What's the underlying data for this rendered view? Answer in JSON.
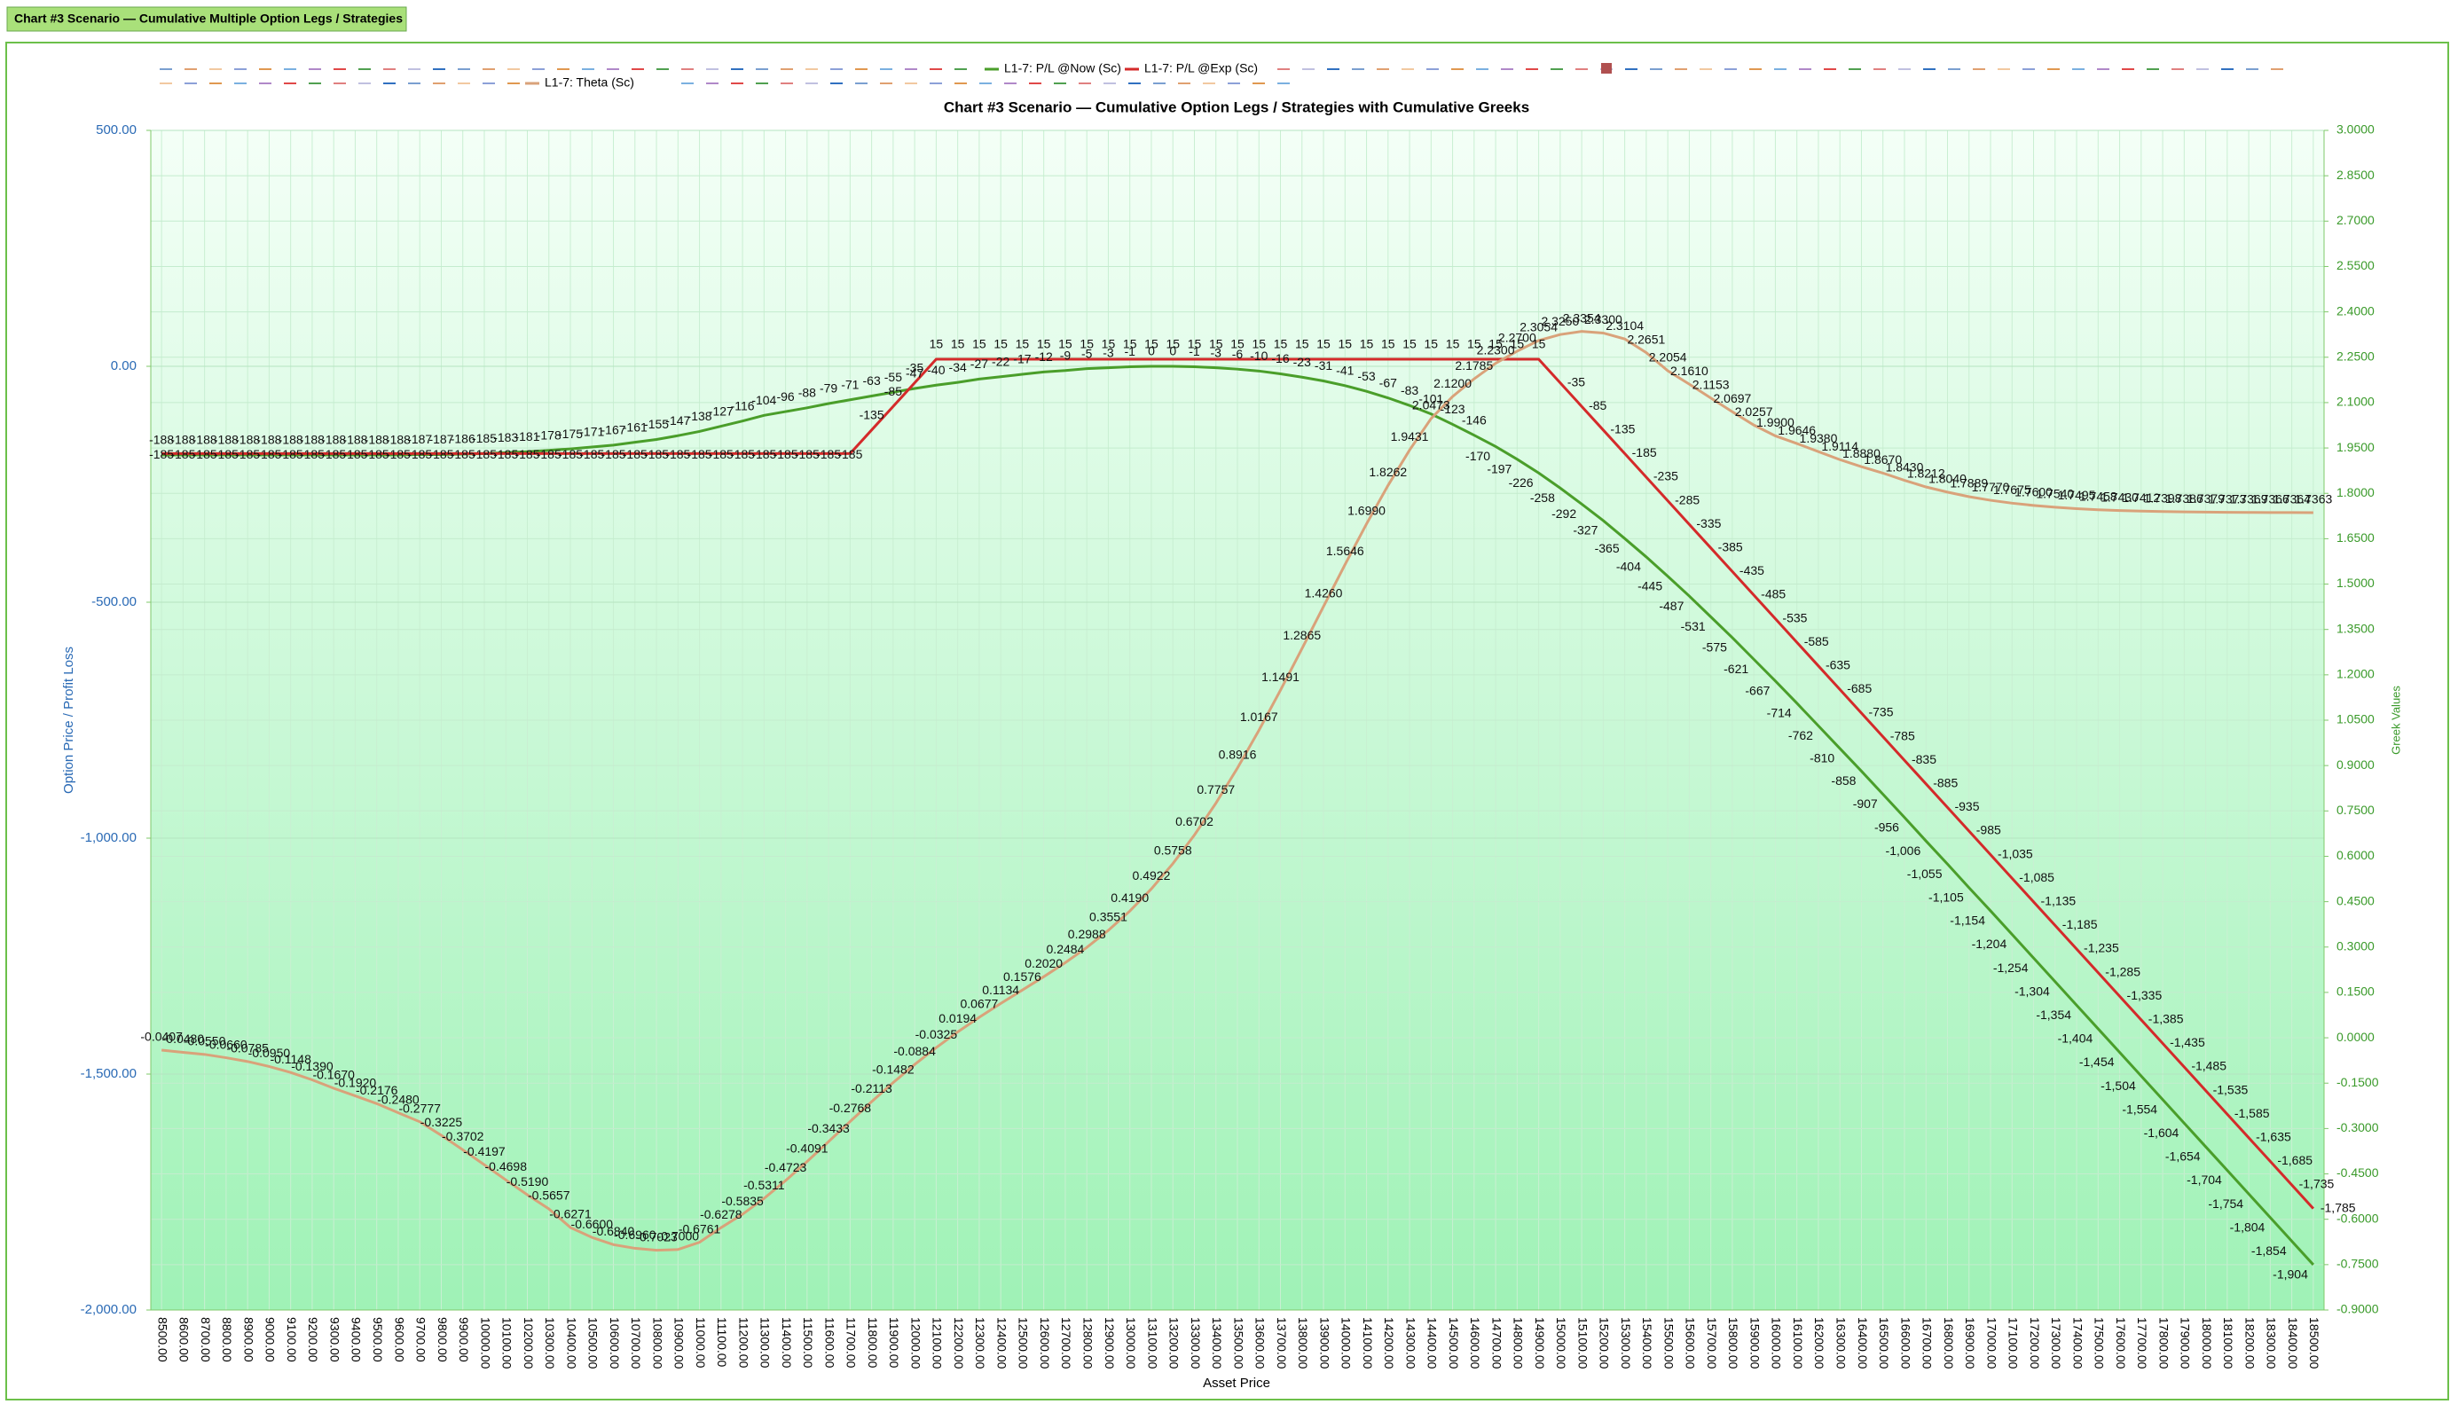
{
  "header": {
    "tab": "Chart #3 Scenario — Cumulative Multiple Option Legs / Strategies"
  },
  "chart_data": {
    "type": "line",
    "title": "Chart #3 Scenario — Cumulative Option Legs / Strategies with Cumulative Greeks",
    "x_label": "Asset Price",
    "y_label": "Option Price / Profit Loss",
    "y2_label": "Greek Values",
    "categories": [
      "8500.00",
      "8600.00",
      "8700.00",
      "8800.00",
      "8900.00",
      "9000.00",
      "9100.00",
      "9200.00",
      "9300.00",
      "9400.00",
      "9500.00",
      "9600.00",
      "9700.00",
      "9800.00",
      "9900.00",
      "10000.00",
      "10100.00",
      "10200.00",
      "10300.00",
      "10400.00",
      "10500.00",
      "10600.00",
      "10700.00",
      "10800.00",
      "10900.00",
      "11000.00",
      "11100.00",
      "11200.00",
      "11300.00",
      "11400.00",
      "11500.00",
      "11600.00",
      "11700.00",
      "11800.00",
      "11900.00",
      "12000.00",
      "12100.00",
      "12200.00",
      "12300.00",
      "12400.00",
      "12500.00",
      "12600.00",
      "12700.00",
      "12800.00",
      "12900.00",
      "13000.00",
      "13100.00",
      "13200.00",
      "13300.00",
      "13400.00",
      "13500.00",
      "13600.00",
      "13700.00",
      "13800.00",
      "13900.00",
      "14000.00",
      "14100.00",
      "14200.00",
      "14300.00",
      "14400.00",
      "14500.00",
      "14600.00",
      "14700.00",
      "14800.00",
      "14900.00",
      "15000.00",
      "15100.00",
      "15200.00",
      "15300.00",
      "15400.00",
      "15500.00",
      "15600.00",
      "15700.00",
      "15800.00",
      "15900.00",
      "16000.00",
      "16100.00",
      "16200.00",
      "16300.00",
      "16400.00",
      "16500.00",
      "16600.00",
      "16700.00",
      "16800.00",
      "16900.00",
      "17000.00",
      "17100.00",
      "17200.00",
      "17300.00",
      "17400.00",
      "17500.00",
      "17600.00",
      "17700.00",
      "17800.00",
      "17900.00",
      "18000.00",
      "18100.00",
      "18200.00",
      "18300.00",
      "18400.00",
      "18500.00"
    ],
    "ylim": [
      -2000,
      500
    ],
    "yticks": [
      {
        "value": 500,
        "label": "500.00"
      },
      {
        "value": 0,
        "label": "0.00"
      },
      {
        "value": -500,
        "label": "-500.00"
      },
      {
        "value": -1000,
        "label": "-1,000.00"
      },
      {
        "value": -1500,
        "label": "-1,500.00"
      },
      {
        "value": -2000,
        "label": "-2,000.00"
      }
    ],
    "y2lim": [
      -0.9,
      3.0
    ],
    "y2ticks": [
      {
        "value": 3.0,
        "label": "3.0000"
      },
      {
        "value": 2.85,
        "label": "2.8500"
      },
      {
        "value": 2.7,
        "label": "2.7000"
      },
      {
        "value": 2.55,
        "label": "2.5500"
      },
      {
        "value": 2.4,
        "label": "2.4000"
      },
      {
        "value": 2.25,
        "label": "2.2500"
      },
      {
        "value": 2.1,
        "label": "2.1000"
      },
      {
        "value": 1.95,
        "label": "1.9500"
      },
      {
        "value": 1.8,
        "label": "1.8000"
      },
      {
        "value": 1.65,
        "label": "1.6500"
      },
      {
        "value": 1.5,
        "label": "1.5000"
      },
      {
        "value": 1.35,
        "label": "1.3500"
      },
      {
        "value": 1.2,
        "label": "1.2000"
      },
      {
        "value": 1.05,
        "label": "1.0500"
      },
      {
        "value": 0.9,
        "label": "0.9000"
      },
      {
        "value": 0.75,
        "label": "0.7500"
      },
      {
        "value": 0.6,
        "label": "0.6000"
      },
      {
        "value": 0.45,
        "label": "0.4500"
      },
      {
        "value": 0.3,
        "label": "0.3000"
      },
      {
        "value": 0.15,
        "label": "0.1500"
      },
      {
        "value": 0,
        "label": "0.0000"
      },
      {
        "value": -0.15,
        "label": "-0.1500"
      },
      {
        "value": -0.3,
        "label": "-0.3000"
      },
      {
        "value": -0.45,
        "label": "-0.4500"
      },
      {
        "value": -0.6,
        "label": "-0.6000"
      },
      {
        "value": -0.75,
        "label": "-0.7500"
      },
      {
        "value": -0.9,
        "label": "-0.9000"
      }
    ],
    "grid": true,
    "series": [
      {
        "name": "L1-7: P/L @Now (Sc)",
        "color": "#4a9e2a",
        "axis": "y",
        "values": [
          -188,
          -188,
          -188,
          -188,
          -188,
          -188,
          -188,
          -188,
          -188,
          -188,
          -188,
          -188,
          -187,
          -187,
          -186,
          -185,
          -183,
          -181,
          -178,
          -175,
          -171,
          -167,
          -161,
          -155,
          -147,
          -138,
          -127,
          -116,
          -104,
          -96,
          -88,
          -79,
          -71,
          -63,
          -55,
          -47,
          -40,
          -34,
          -27,
          -22,
          -17,
          -12,
          -9,
          -5,
          -3,
          -1,
          0,
          0,
          -1,
          -3,
          -6,
          -10,
          -16,
          -23,
          -31,
          -41,
          -53,
          -67,
          -83,
          -101,
          -123,
          -146,
          -170,
          -197,
          -226,
          -258,
          -292,
          -327,
          -365,
          -404,
          -445,
          -487,
          -531,
          -575,
          -621,
          -667,
          -714,
          -762,
          -810,
          -858,
          -907,
          -956,
          -1006,
          -1055,
          -1105,
          -1154,
          -1204,
          -1254,
          -1304,
          -1354,
          -1404,
          -1454,
          -1504,
          -1554,
          -1604,
          -1654,
          -1704,
          -1754,
          -1804,
          -1854,
          -1904
        ],
        "value_labels": [
          "-188",
          "-188",
          "-188",
          "-188",
          "-188",
          "-188",
          "-188",
          "-188",
          "-188",
          "-188",
          "-188",
          "-188",
          "-187",
          "-187",
          "-186",
          "-185",
          "-183",
          "-181",
          "-178",
          "-175",
          "-171",
          "-167",
          "-161",
          "-155",
          "-147",
          "-138",
          "-127",
          "-116",
          "-104",
          "-96",
          "-88",
          "-79",
          "-71",
          "-63",
          "-55",
          "-47",
          "-40",
          "-34",
          "-27",
          "-22",
          "-17",
          "-12",
          "-9",
          "-5",
          "-3",
          "-1",
          "0",
          "0",
          "-1",
          "-3",
          "-6",
          "-10",
          "-16",
          "-23",
          "-31",
          "-41",
          "-53",
          "-67",
          "-83",
          "-101",
          "-123",
          "-146",
          "-170",
          "-197",
          "-226",
          "-258",
          "-292",
          "-327",
          "-365",
          "-404",
          "-445",
          "-487",
          "-531",
          "-575",
          "-621",
          "-667",
          "-714",
          "-762",
          "-810",
          "-858",
          "-907",
          "-956",
          "-1,006",
          "-1,055",
          "-1,105",
          "-1,154",
          "-1,204",
          "-1,254",
          "-1,304",
          "-1,354",
          "-1,404",
          "-1,454",
          "-1,504",
          "-1,554",
          "-1,604",
          "-1,654",
          "-1,704",
          "-1,754",
          "-1,804",
          "-1,854",
          "-1,904"
        ]
      },
      {
        "name": "L1-7: P/L @Exp (Sc)",
        "color": "#d42a2a",
        "axis": "y",
        "values": [
          -185,
          -185,
          -185,
          -185,
          -185,
          -185,
          -185,
          -185,
          -185,
          -185,
          -185,
          -185,
          -185,
          -185,
          -185,
          -185,
          -185,
          -185,
          -185,
          -185,
          -185,
          -185,
          -185,
          -185,
          -185,
          -185,
          -185,
          -185,
          -185,
          -185,
          -185,
          -185,
          -185,
          -135,
          -85,
          -35,
          15,
          15,
          15,
          15,
          15,
          15,
          15,
          15,
          15,
          15,
          15,
          15,
          15,
          15,
          15,
          15,
          15,
          15,
          15,
          15,
          15,
          15,
          15,
          15,
          15,
          15,
          15,
          15,
          15,
          -35,
          -85,
          -135,
          -185,
          -235,
          -285,
          -335,
          -385,
          -435,
          -485,
          -535,
          -585,
          -635,
          -685,
          -735,
          -785,
          -835,
          -885,
          -935,
          -985,
          -1035,
          -1085,
          -1135,
          -1185,
          -1235,
          -1285,
          -1335,
          -1385,
          -1435,
          -1485,
          -1535,
          -1585,
          -1635,
          -1685,
          -1735,
          -1785
        ],
        "value_labels": [
          "-185",
          "-185",
          "-185",
          "-185",
          "-185",
          "-185",
          "-185",
          "-185",
          "-185",
          "-185",
          "-185",
          "-185",
          "-185",
          "-185",
          "-185",
          "-185",
          "-185",
          "-185",
          "-185",
          "-185",
          "-185",
          "-185",
          "-185",
          "-185",
          "-185",
          "-185",
          "-185",
          "-185",
          "-185",
          "-185",
          "-185",
          "-185",
          "-185",
          "-135",
          "-85",
          "-35",
          "15",
          "15",
          "15",
          "15",
          "15",
          "15",
          "15",
          "15",
          "15",
          "15",
          "15",
          "15",
          "15",
          "15",
          "15",
          "15",
          "15",
          "15",
          "15",
          "15",
          "15",
          "15",
          "15",
          "15",
          "15",
          "15",
          "15",
          "15",
          "15",
          "-35",
          "-85",
          "-135",
          "-185",
          "-235",
          "-285",
          "-335",
          "-385",
          "-435",
          "-485",
          "-535",
          "-585",
          "-635",
          "-685",
          "-735",
          "-785",
          "-835",
          "-885",
          "-935",
          "-985",
          "-1,035",
          "-1,085",
          "-1,135",
          "-1,185",
          "-1,235",
          "-1,285",
          "-1,335",
          "-1,385",
          "-1,435",
          "-1,485",
          "-1,535",
          "-1,585",
          "-1,635",
          "-1,685",
          "-1,735",
          "-1,785"
        ]
      },
      {
        "name": "L1-7: Theta (Sc)",
        "color": "#d9a27a",
        "axis": "y2",
        "values": [
          -0.0407,
          -0.048,
          -0.055,
          -0.066,
          -0.0785,
          -0.095,
          -0.1148,
          -0.139,
          -0.167,
          -0.192,
          -0.2176,
          -0.248,
          -0.2777,
          -0.3225,
          -0.3702,
          -0.4197,
          -0.4698,
          -0.519,
          -0.5657,
          -0.6271,
          -0.66,
          -0.684,
          -0.696,
          -0.7023,
          -0.7,
          -0.6761,
          -0.6278,
          -0.5835,
          -0.5311,
          -0.4723,
          -0.4091,
          -0.3433,
          -0.2768,
          -0.2113,
          -0.1482,
          -0.0884,
          -0.0325,
          0.0194,
          0.0677,
          0.1134,
          0.1576,
          0.202,
          0.2484,
          0.2988,
          0.3551,
          0.419,
          0.4922,
          0.5758,
          0.6702,
          0.7757,
          0.8916,
          1.0167,
          1.1491,
          1.2865,
          1.426,
          1.5646,
          1.699,
          1.8262,
          1.9431,
          2.0473,
          2.12,
          2.1785,
          2.23,
          2.27,
          2.3054,
          2.325,
          2.3354,
          2.33,
          2.3104,
          2.2651,
          2.2054,
          2.161,
          2.1153,
          2.0697,
          2.0257,
          1.99,
          1.9646,
          1.938,
          1.9114,
          1.888,
          1.867,
          1.843,
          1.8212,
          1.804,
          1.7889,
          1.777,
          1.7675,
          1.76,
          1.754,
          1.7495,
          1.7458,
          1.743,
          1.7412,
          1.7398,
          1.7386,
          1.7379,
          1.7373,
          1.7369,
          1.7366,
          1.7364,
          1.7363
        ],
        "value_labels": [
          "-0.0407",
          "-0.0480",
          "-0.0550",
          "-0.0660",
          "-0.0785",
          "-0.0950",
          "-0.1148",
          "-0.1390",
          "-0.1670",
          "-0.1920",
          "-0.2176",
          "-0.2480",
          "-0.2777",
          "-0.3225",
          "-0.3702",
          "-0.4197",
          "-0.4698",
          "-0.5190",
          "-0.5657",
          "-0.6271",
          "-0.6600",
          "-0.6840",
          "-0.6960",
          "-0.7023",
          "-0.7000",
          "-0.6761",
          "-0.6278",
          "-0.5835",
          "-0.5311",
          "-0.4723",
          "-0.4091",
          "-0.3433",
          "-0.2768",
          "-0.2113",
          "-0.1482",
          "-0.0884",
          "-0.0325",
          "0.0194",
          "0.0677",
          "0.1134",
          "0.1576",
          "0.2020",
          "0.2484",
          "0.2988",
          "0.3551",
          "0.4190",
          "0.4922",
          "0.5758",
          "0.6702",
          "0.7757",
          "0.8916",
          "1.0167",
          "1.1491",
          "1.2865",
          "1.4260",
          "1.5646",
          "1.6990",
          "1.8262",
          "1.9431",
          "2.0473",
          "2.1200",
          "2.1785",
          "2.2300",
          "2.2700",
          "2.3054",
          "2.3250",
          "2.3354",
          "2.3300",
          "2.3104",
          "2.2651",
          "2.2054",
          "2.1610",
          "2.1153",
          "2.0697",
          "2.0257",
          "1.9900",
          "1.9646",
          "1.9380",
          "1.9114",
          "1.8880",
          "1.8670",
          "1.8430",
          "1.8212",
          "1.8040",
          "1.7889",
          "1.7770",
          "1.7675",
          "1.7600",
          "1.7540",
          "1.7495",
          "1.7458",
          "1.7430",
          "1.7412",
          "1.7398",
          "1.7386",
          "1.7379",
          "1.7373",
          "1.7369",
          "1.7366",
          "1.7364",
          "1.7363"
        ]
      }
    ]
  }
}
